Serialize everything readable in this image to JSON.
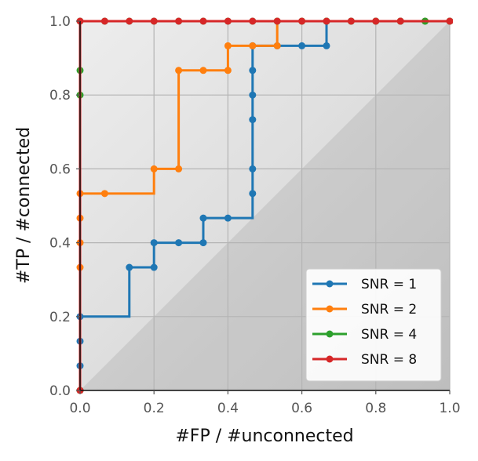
{
  "chart_data": {
    "type": "line",
    "xlabel": "#FP / #unconnected",
    "ylabel": "#TP / #connected",
    "xlim": [
      0,
      1
    ],
    "ylim": [
      0,
      1
    ],
    "xticks": [
      "0.0",
      "0.2",
      "0.4",
      "0.6",
      "0.8",
      "1.0"
    ],
    "yticks": [
      "0.0",
      "0.2",
      "0.4",
      "0.6",
      "0.8",
      "1.0"
    ],
    "grid": true,
    "legend_position": "bottom-right",
    "line_style": "step",
    "series": [
      {
        "name": "SNR = 1",
        "color": "#1f77b4",
        "points": [
          [
            0,
            0
          ],
          [
            0,
            0.0667
          ],
          [
            0,
            0.1333
          ],
          [
            0,
            0.2
          ],
          [
            0.1333,
            0.3333
          ],
          [
            0.2,
            0.3333
          ],
          [
            0.2,
            0.4
          ],
          [
            0.2667,
            0.4
          ],
          [
            0.3333,
            0.4
          ],
          [
            0.3333,
            0.4667
          ],
          [
            0.4,
            0.4667
          ],
          [
            0.4667,
            0.5333
          ],
          [
            0.4667,
            0.6
          ],
          [
            0.4667,
            0.7333
          ],
          [
            0.4667,
            0.8
          ],
          [
            0.4667,
            0.8667
          ],
          [
            0.4667,
            0.9333
          ],
          [
            0.5333,
            0.9333
          ],
          [
            0.6,
            0.9333
          ],
          [
            0.6667,
            0.9333
          ],
          [
            0.6667,
            1.0
          ],
          [
            0.7333,
            1.0
          ],
          [
            0.8,
            1.0
          ],
          [
            0.8667,
            1.0
          ],
          [
            0.9333,
            1.0
          ],
          [
            1.0,
            1.0
          ]
        ]
      },
      {
        "name": "SNR = 2",
        "color": "#ff7f0e",
        "points": [
          [
            0,
            0
          ],
          [
            0,
            0.3333
          ],
          [
            0,
            0.4
          ],
          [
            0,
            0.4667
          ],
          [
            0,
            0.5333
          ],
          [
            0.0667,
            0.5333
          ],
          [
            0.2,
            0.6
          ],
          [
            0.2667,
            0.6
          ],
          [
            0.2667,
            0.8667
          ],
          [
            0.3333,
            0.8667
          ],
          [
            0.4,
            0.8667
          ],
          [
            0.4,
            0.9333
          ],
          [
            0.4667,
            0.9333
          ],
          [
            0.5333,
            0.9333
          ],
          [
            0.5333,
            1.0
          ],
          [
            0.6,
            1.0
          ],
          [
            0.6667,
            1.0
          ],
          [
            0.7333,
            1.0
          ],
          [
            0.8,
            1.0
          ],
          [
            0.8667,
            1.0
          ],
          [
            0.9333,
            1.0
          ],
          [
            1.0,
            1.0
          ]
        ]
      },
      {
        "name": "SNR = 4",
        "color": "#2ca02c",
        "points": [
          [
            0,
            0
          ],
          [
            0,
            0.8
          ],
          [
            0,
            0.8667
          ],
          [
            0,
            1.0
          ],
          [
            0.0667,
            1.0
          ],
          [
            0.1333,
            1.0
          ],
          [
            0.2,
            1.0
          ],
          [
            0.2667,
            1.0
          ],
          [
            0.3333,
            1.0
          ],
          [
            0.4,
            1.0
          ],
          [
            0.4667,
            1.0
          ],
          [
            0.5333,
            1.0
          ],
          [
            0.6,
            1.0
          ],
          [
            0.6667,
            1.0
          ],
          [
            0.7333,
            1.0
          ],
          [
            0.8,
            1.0
          ],
          [
            0.8667,
            1.0
          ],
          [
            0.9333,
            1.0
          ],
          [
            1.0,
            1.0
          ]
        ]
      },
      {
        "name": "SNR = 8",
        "color": "#d62728",
        "points": [
          [
            0,
            0
          ],
          [
            0,
            1.0
          ],
          [
            0.0667,
            1.0
          ],
          [
            0.1333,
            1.0
          ],
          [
            0.2,
            1.0
          ],
          [
            0.2667,
            1.0
          ],
          [
            0.3333,
            1.0
          ],
          [
            0.4,
            1.0
          ],
          [
            0.4667,
            1.0
          ],
          [
            0.5333,
            1.0
          ],
          [
            0.6,
            1.0
          ],
          [
            0.6667,
            1.0
          ],
          [
            0.7333,
            1.0
          ],
          [
            0.8,
            1.0
          ],
          [
            0.8667,
            1.0
          ],
          [
            1.0,
            1.0
          ]
        ]
      }
    ]
  }
}
